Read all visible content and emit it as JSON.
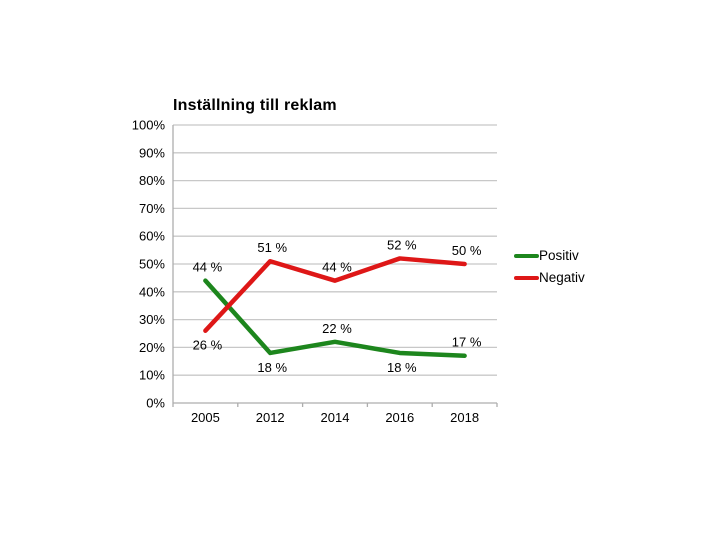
{
  "chart_data": {
    "type": "line",
    "title": "Inställning till reklam",
    "categories": [
      "2005",
      "2012",
      "2014",
      "2016",
      "2018"
    ],
    "series": [
      {
        "name": "Positiv",
        "color": "#1d861d",
        "values": [
          44,
          18,
          22,
          18,
          17
        ],
        "data_labels": [
          "44 %",
          "18 %",
          "22 %",
          "18 %",
          "17 %"
        ],
        "label_positions": [
          "above",
          "below",
          "above",
          "below",
          "above"
        ]
      },
      {
        "name": "Negativ",
        "color": "#de1717",
        "values": [
          26,
          51,
          44,
          52,
          50
        ],
        "data_labels": [
          "26 %",
          "51 %",
          "44 %",
          "52 %",
          "50 %"
        ],
        "label_positions": [
          "below",
          "above",
          "above",
          "above",
          "above"
        ]
      }
    ],
    "xlabel": "",
    "ylabel": "",
    "ylim": [
      0,
      100
    ],
    "ytick_step": 10,
    "ytick_labels": [
      "0%",
      "10%",
      "20%",
      "30%",
      "40%",
      "50%",
      "60%",
      "70%",
      "80%",
      "90%",
      "100%"
    ],
    "grid": "horizontal",
    "legend_position": "right",
    "colors": {
      "grid": "#c8c8c8",
      "axis": "#adadad",
      "text": "#000000",
      "background": "#ffffff"
    }
  }
}
